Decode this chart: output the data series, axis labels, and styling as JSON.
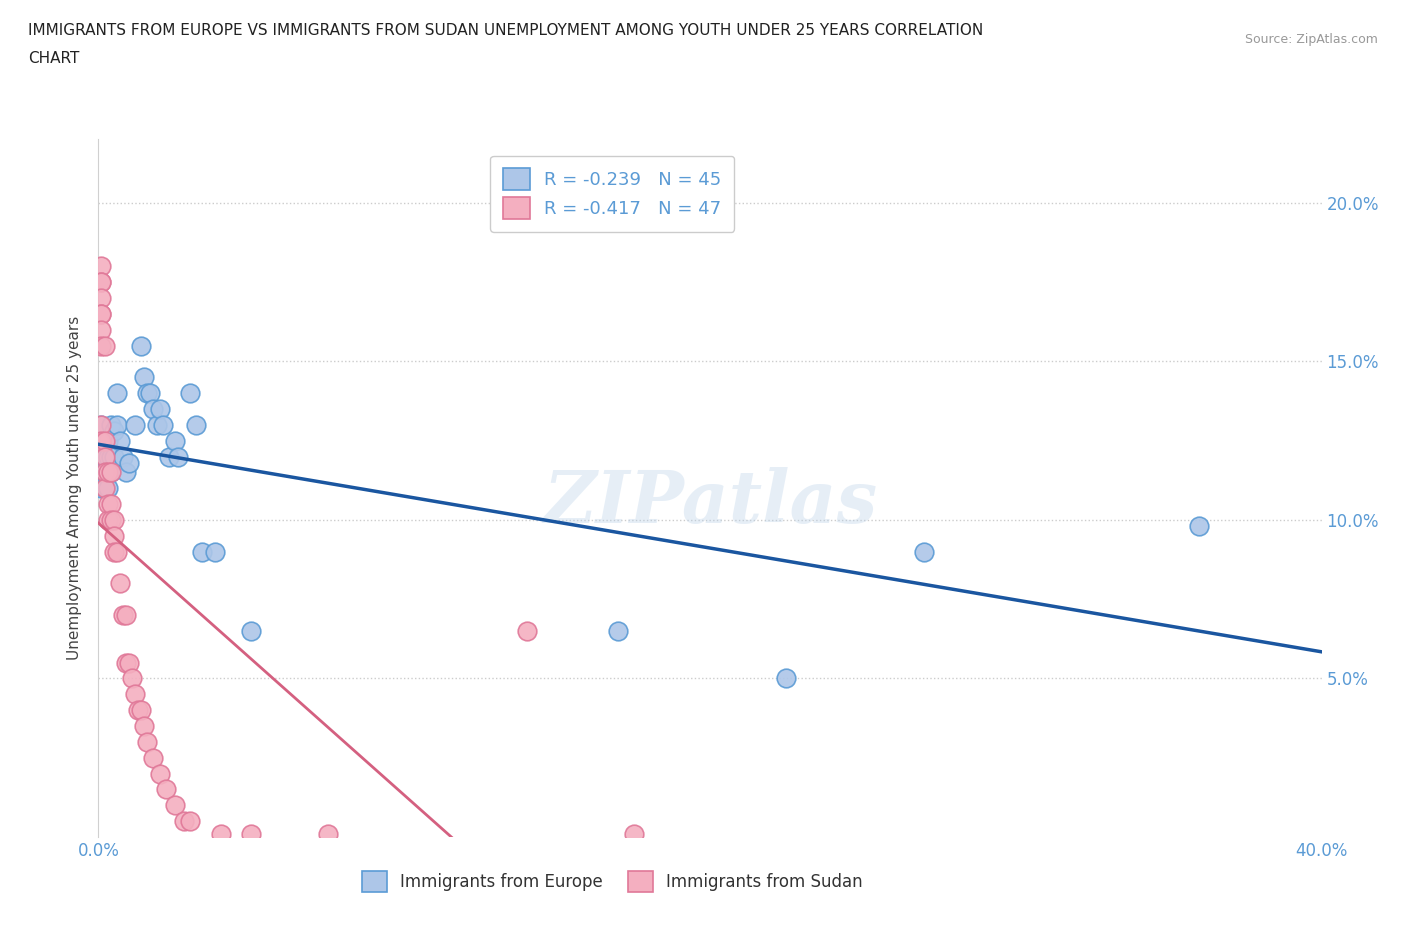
{
  "title_line1": "IMMIGRANTS FROM EUROPE VS IMMIGRANTS FROM SUDAN UNEMPLOYMENT AMONG YOUTH UNDER 25 YEARS CORRELATION",
  "title_line2": "CHART",
  "source": "Source: ZipAtlas.com",
  "ylabel": "Unemployment Among Youth under 25 years",
  "right_yticks": [
    "5.0%",
    "10.0%",
    "15.0%",
    "20.0%"
  ],
  "right_ytick_vals": [
    0.05,
    0.1,
    0.15,
    0.2
  ],
  "watermark": "ZIPatlas",
  "legend_europe_R": "R = -0.239",
  "legend_europe_N": "N = 45",
  "legend_sudan_R": "R = -0.417",
  "legend_sudan_N": "N = 47",
  "europe_color": "#adc6e8",
  "europe_edge": "#5b9bd5",
  "sudan_color": "#f4afc0",
  "sudan_edge": "#e07898",
  "trendline_europe_color": "#1a56a0",
  "trendline_sudan_color": "#d46080",
  "europe_points_x": [
    0.001,
    0.001,
    0.001,
    0.001,
    0.001,
    0.002,
    0.002,
    0.002,
    0.002,
    0.003,
    0.003,
    0.003,
    0.003,
    0.004,
    0.004,
    0.004,
    0.005,
    0.005,
    0.006,
    0.006,
    0.007,
    0.008,
    0.009,
    0.01,
    0.012,
    0.014,
    0.015,
    0.016,
    0.017,
    0.018,
    0.019,
    0.02,
    0.021,
    0.023,
    0.025,
    0.026,
    0.03,
    0.032,
    0.034,
    0.038,
    0.05,
    0.17,
    0.225,
    0.27,
    0.36
  ],
  "europe_points_y": [
    0.13,
    0.125,
    0.12,
    0.115,
    0.11,
    0.125,
    0.12,
    0.115,
    0.11,
    0.125,
    0.12,
    0.115,
    0.11,
    0.13,
    0.12,
    0.115,
    0.128,
    0.12,
    0.14,
    0.13,
    0.125,
    0.12,
    0.115,
    0.118,
    0.13,
    0.155,
    0.145,
    0.14,
    0.14,
    0.135,
    0.13,
    0.135,
    0.13,
    0.12,
    0.125,
    0.12,
    0.14,
    0.13,
    0.09,
    0.09,
    0.065,
    0.065,
    0.05,
    0.09,
    0.098
  ],
  "sudan_points_x": [
    0.001,
    0.001,
    0.001,
    0.001,
    0.001,
    0.001,
    0.001,
    0.001,
    0.001,
    0.001,
    0.002,
    0.002,
    0.002,
    0.002,
    0.002,
    0.003,
    0.003,
    0.003,
    0.004,
    0.004,
    0.004,
    0.005,
    0.005,
    0.005,
    0.006,
    0.007,
    0.008,
    0.009,
    0.009,
    0.01,
    0.011,
    0.012,
    0.013,
    0.014,
    0.015,
    0.016,
    0.018,
    0.02,
    0.022,
    0.025,
    0.028,
    0.03,
    0.04,
    0.05,
    0.075,
    0.14,
    0.175
  ],
  "sudan_points_y": [
    0.18,
    0.175,
    0.175,
    0.17,
    0.165,
    0.165,
    0.16,
    0.155,
    0.13,
    0.125,
    0.155,
    0.125,
    0.12,
    0.115,
    0.11,
    0.115,
    0.105,
    0.1,
    0.115,
    0.105,
    0.1,
    0.1,
    0.095,
    0.09,
    0.09,
    0.08,
    0.07,
    0.07,
    0.055,
    0.055,
    0.05,
    0.045,
    0.04,
    0.04,
    0.035,
    0.03,
    0.025,
    0.02,
    0.015,
    0.01,
    0.005,
    0.005,
    0.001,
    0.001,
    0.001,
    0.065,
    0.001
  ],
  "xlim": [
    0,
    0.4
  ],
  "ylim": [
    0,
    0.22
  ],
  "xtick_positions": [
    0.0,
    0.05,
    0.1,
    0.15,
    0.2,
    0.25,
    0.3,
    0.35,
    0.4
  ],
  "xtick_labels_show": {
    "0.0": "0.0%",
    "0.4": "40.0%"
  },
  "background_color": "#ffffff",
  "grid_color": "#cccccc",
  "title_color": "#222222",
  "axis_color": "#5b9bd5"
}
